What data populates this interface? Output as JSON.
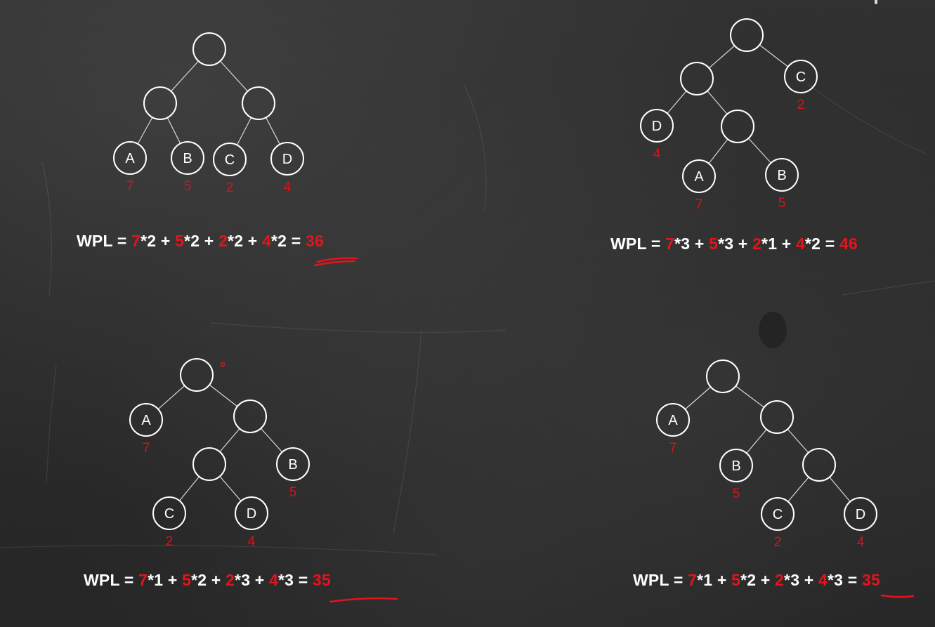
{
  "colors": {
    "node_stroke": "#ffffff",
    "edge": "#d8d8d8",
    "weight": "#d6141c",
    "formula_text": "#ffffff",
    "formula_highlight": "#e3141c"
  },
  "trees": [
    {
      "id": "tree-1",
      "nodes": [
        {
          "id": "r"
        },
        {
          "id": "n1"
        },
        {
          "id": "n2"
        },
        {
          "id": "a",
          "label": "A",
          "weight": "7"
        },
        {
          "id": "b",
          "label": "B",
          "weight": "5"
        },
        {
          "id": "c",
          "label": "C",
          "weight": "2"
        },
        {
          "id": "d",
          "label": "D",
          "weight": "4"
        }
      ],
      "edges": [
        [
          "r",
          "n1"
        ],
        [
          "r",
          "n2"
        ],
        [
          "n1",
          "a"
        ],
        [
          "n1",
          "b"
        ],
        [
          "n2",
          "c"
        ],
        [
          "n2",
          "d"
        ]
      ],
      "formula": {
        "prefix": "WPL = ",
        "terms": [
          {
            "w": "7",
            "op": "*2 + "
          },
          {
            "w": "5",
            "op": "*2 + "
          },
          {
            "w": "2",
            "op": "*2 + "
          },
          {
            "w": "4",
            "op": "*2 = "
          }
        ],
        "result": "36",
        "underlined": true
      }
    },
    {
      "id": "tree-2",
      "nodes": [
        {
          "id": "r"
        },
        {
          "id": "n1"
        },
        {
          "id": "c",
          "label": "C",
          "weight": "2"
        },
        {
          "id": "d",
          "label": "D",
          "weight": "4"
        },
        {
          "id": "n2"
        },
        {
          "id": "a",
          "label": "A",
          "weight": "7"
        },
        {
          "id": "b",
          "label": "B",
          "weight": "5"
        }
      ],
      "edges": [
        [
          "r",
          "n1"
        ],
        [
          "r",
          "c"
        ],
        [
          "n1",
          "d"
        ],
        [
          "n1",
          "n2"
        ],
        [
          "n2",
          "a"
        ],
        [
          "n2",
          "b"
        ]
      ],
      "formula": {
        "prefix": "WPL = ",
        "terms": [
          {
            "w": "7",
            "op": "*3 + "
          },
          {
            "w": "5",
            "op": "*3 + "
          },
          {
            "w": "2",
            "op": "*1 + "
          },
          {
            "w": "4",
            "op": "*2 = "
          }
        ],
        "result": "46",
        "underlined": false
      }
    },
    {
      "id": "tree-3",
      "nodes": [
        {
          "id": "r"
        },
        {
          "id": "a",
          "label": "A",
          "weight": "7"
        },
        {
          "id": "n1"
        },
        {
          "id": "n2"
        },
        {
          "id": "b",
          "label": "B",
          "weight": "5"
        },
        {
          "id": "c",
          "label": "C",
          "weight": "2"
        },
        {
          "id": "d",
          "label": "D",
          "weight": "4"
        }
      ],
      "edges": [
        [
          "r",
          "a"
        ],
        [
          "r",
          "n1"
        ],
        [
          "n1",
          "n2"
        ],
        [
          "n1",
          "b"
        ],
        [
          "n2",
          "c"
        ],
        [
          "n2",
          "d"
        ]
      ],
      "formula": {
        "prefix": "WPL = ",
        "terms": [
          {
            "w": "7",
            "op": "*1 + "
          },
          {
            "w": "5",
            "op": "*2 + "
          },
          {
            "w": "2",
            "op": "*3 + "
          },
          {
            "w": "4",
            "op": "*3 = "
          }
        ],
        "result": "35",
        "underlined": true
      }
    },
    {
      "id": "tree-4",
      "nodes": [
        {
          "id": "r"
        },
        {
          "id": "a",
          "label": "A",
          "weight": "7"
        },
        {
          "id": "n1"
        },
        {
          "id": "b",
          "label": "B",
          "weight": "5"
        },
        {
          "id": "n2"
        },
        {
          "id": "c",
          "label": "C",
          "weight": "2"
        },
        {
          "id": "d",
          "label": "D",
          "weight": "4"
        }
      ],
      "edges": [
        [
          "r",
          "a"
        ],
        [
          "r",
          "n1"
        ],
        [
          "n1",
          "b"
        ],
        [
          "n1",
          "n2"
        ],
        [
          "n2",
          "c"
        ],
        [
          "n2",
          "d"
        ]
      ],
      "formula": {
        "prefix": "WPL = ",
        "terms": [
          {
            "w": "7",
            "op": "*1 + "
          },
          {
            "w": "5",
            "op": "*2 + "
          },
          {
            "w": "2",
            "op": "*3 + "
          },
          {
            "w": "4",
            "op": "*3 = "
          }
        ],
        "result": "35",
        "underlined": true
      }
    }
  ]
}
